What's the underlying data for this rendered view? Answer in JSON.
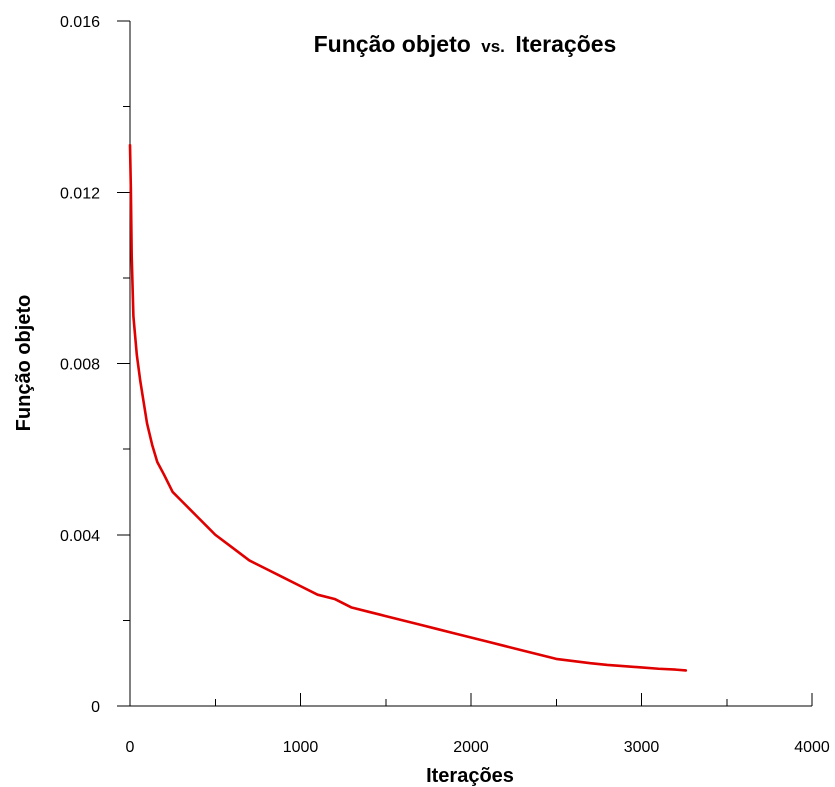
{
  "chart_data": {
    "type": "line",
    "title": {
      "part1": "Função objeto",
      "part2": "vs.",
      "part3": "Iterações"
    },
    "xlabel": "Iterações",
    "ylabel": "Função objeto",
    "xlim": [
      0,
      4000
    ],
    "ylim": [
      0,
      0.016
    ],
    "x_ticks": {
      "major": [
        0,
        1000,
        2000,
        3000,
        4000
      ],
      "major_labels": [
        "0",
        "1000",
        "2000",
        "3000",
        "4000"
      ],
      "minor": [
        500,
        1500,
        2500,
        3500
      ]
    },
    "y_ticks": {
      "major": [
        0,
        0.004,
        0.008,
        0.012,
        0.016
      ],
      "major_labels": [
        "0",
        "0.004",
        "0.008",
        "0.012",
        "0.016"
      ],
      "minor": [
        0.002,
        0.006,
        0.01,
        0.014
      ]
    },
    "grid": false,
    "legend": "none",
    "line_color": "#e00000",
    "series": [
      {
        "x": [
          0,
          5,
          10,
          20,
          40,
          60,
          80,
          100,
          130,
          160,
          200,
          250,
          300,
          350,
          400,
          450,
          500,
          600,
          700,
          800,
          900,
          1000,
          1100,
          1200,
          1300,
          1400,
          1500,
          1600,
          1700,
          1800,
          1900,
          2000,
          2100,
          2200,
          2300,
          2400,
          2500,
          2600,
          2700,
          2800,
          2900,
          3000,
          3100,
          3200,
          3260
        ],
        "y": [
          0.0131,
          0.0121,
          0.0105,
          0.0091,
          0.0082,
          0.0076,
          0.0071,
          0.0066,
          0.0061,
          0.0057,
          0.0054,
          0.005,
          0.0048,
          0.0046,
          0.0044,
          0.0042,
          0.004,
          0.0037,
          0.0034,
          0.0032,
          0.003,
          0.0028,
          0.0026,
          0.0025,
          0.0023,
          0.0022,
          0.0021,
          0.002,
          0.0019,
          0.0018,
          0.0017,
          0.0016,
          0.0015,
          0.0014,
          0.0013,
          0.0012,
          0.0011,
          0.00105,
          0.001,
          0.00096,
          0.00093,
          0.0009,
          0.00087,
          0.00085,
          0.00083
        ]
      }
    ]
  }
}
